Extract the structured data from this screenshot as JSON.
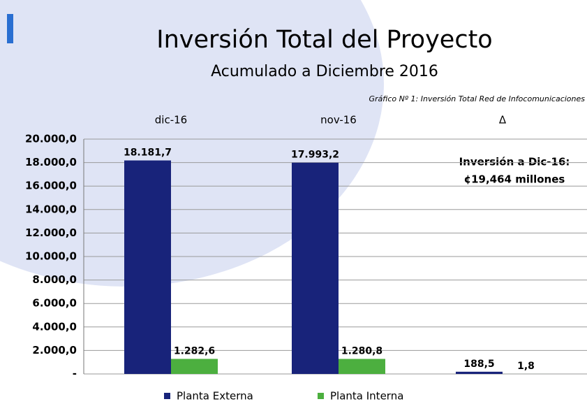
{
  "chart_data": {
    "type": "bar",
    "title": "Inversión Total del Proyecto",
    "subtitle": "Acumulado a Diciembre 2016",
    "caption": "Gráfico Nº 1: Inversión Total Red de Infocomunicaciones",
    "annotations": [
      "Inversión a Dic-16:",
      "¢19,464 millones"
    ],
    "categories": [
      "dic-16",
      "nov-16",
      "Δ"
    ],
    "series": [
      {
        "name": "Planta Externa",
        "color": "#18237a",
        "values": [
          18181.7,
          17993.2,
          188.5
        ],
        "value_labels": [
          "18.181,7",
          "17.993,2",
          "188,5"
        ]
      },
      {
        "name": "Planta Interna",
        "color": "#4caf3f",
        "values": [
          1282.6,
          1280.8,
          1.8
        ],
        "value_labels": [
          "1.282,6",
          "1.280,8",
          "1,8"
        ]
      }
    ],
    "ylim": [
      0,
      20000
    ],
    "yticks": [
      {
        "value": 0,
        "label": "-"
      },
      {
        "value": 2000,
        "label": "2.000,0"
      },
      {
        "value": 4000,
        "label": "4.000,0"
      },
      {
        "value": 6000,
        "label": "6.000,0"
      },
      {
        "value": 8000,
        "label": "8.000,0"
      },
      {
        "value": 10000,
        "label": "10.000,0"
      },
      {
        "value": 12000,
        "label": "12.000,0"
      },
      {
        "value": 14000,
        "label": "14.000,0"
      },
      {
        "value": 16000,
        "label": "16.000,0"
      },
      {
        "value": 18000,
        "label": "18.000,0"
      },
      {
        "value": 20000,
        "label": "20.000,0"
      }
    ],
    "grid": true,
    "legend": "bottom"
  }
}
